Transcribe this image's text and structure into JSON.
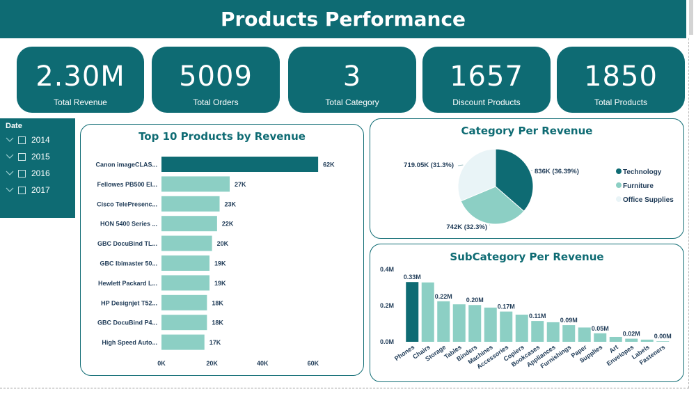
{
  "header": {
    "title": "Products Performance"
  },
  "kpis": [
    {
      "value": "2.30M",
      "label": "Total Revenue"
    },
    {
      "value": "5009",
      "label": "Total Orders"
    },
    {
      "value": "3",
      "label": "Total Category"
    },
    {
      "value": "1657",
      "label": "Discount Products"
    },
    {
      "value": "1850",
      "label": "Total Products"
    }
  ],
  "date_slicer": {
    "title": "Date",
    "years": [
      "2014",
      "2015",
      "2016",
      "2017"
    ]
  },
  "colors": {
    "primary": "#0e6b73",
    "secondary": "#8ccfc4",
    "light": "#e9f4f7",
    "selected_bar": "#0e6b73"
  },
  "chart_data": [
    {
      "type": "bar",
      "orientation": "horizontal",
      "title": "Top 10 Products by Revenue",
      "categories": [
        "Canon imageCLAS...",
        "Fellowes PB500 El...",
        "Cisco TelePresenc...",
        "HON 5400 Series ...",
        "GBC DocuBind TL...",
        "GBC Ibimaster 50...",
        "Hewlett Packard L...",
        "HP Designjet T52...",
        "GBC DocuBind P4...",
        "High Speed Auto..."
      ],
      "values": [
        62000,
        27000,
        23000,
        22000,
        20000,
        19000,
        19000,
        18000,
        18000,
        17000
      ],
      "data_labels": [
        "62K",
        "27K",
        "23K",
        "22K",
        "20K",
        "19K",
        "19K",
        "18K",
        "18K",
        "17K"
      ],
      "x_ticks": [
        "0K",
        "20K",
        "40K",
        "60K"
      ],
      "xlim": [
        0,
        65000
      ],
      "grid": false
    },
    {
      "type": "pie",
      "title": "Category Per Revenue",
      "labels": [
        "Technology",
        "Furniture",
        "Office Supplies"
      ],
      "values": [
        836000,
        742000,
        719050
      ],
      "data_labels": [
        "836K (36.39%)",
        "742K (32.3%)",
        "719.05K (31.3%)"
      ],
      "colors": [
        "#0e6b73",
        "#8ccfc4",
        "#e9f4f7"
      ],
      "legend": "right"
    },
    {
      "type": "bar",
      "orientation": "vertical",
      "title": "SubCategory Per Revenue",
      "categories": [
        "Phones",
        "Chairs",
        "Storage",
        "Tables",
        "Binders",
        "Machines",
        "Accessories",
        "Copiers",
        "Bookcases",
        "Appliances",
        "Furnishings",
        "Paper",
        "Supplies",
        "Art",
        "Envelopes",
        "Labels",
        "Fasteners"
      ],
      "values": [
        330000,
        328000,
        224000,
        207000,
        203000,
        189000,
        167000,
        150000,
        115000,
        108000,
        92000,
        79000,
        47000,
        27000,
        17000,
        12000,
        3000
      ],
      "data_labels": [
        "0.33M",
        "",
        "0.22M",
        "",
        "0.20M",
        "",
        "0.17M",
        "",
        "0.11M",
        "",
        "0.09M",
        "",
        "0.05M",
        "",
        "0.02M",
        "",
        "0.00M"
      ],
      "y_ticks": [
        "0.0M",
        "0.2M",
        "0.4M"
      ],
      "ylim": [
        0,
        400000
      ],
      "highlight_index": 0,
      "grid": false
    }
  ]
}
